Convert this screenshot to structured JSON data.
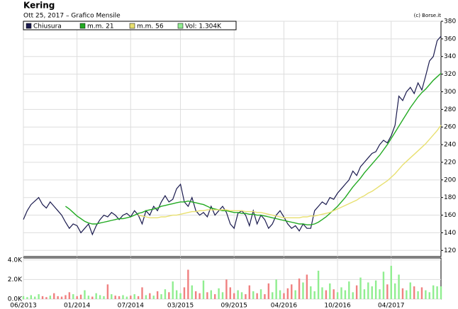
{
  "chart_data": {
    "type": "line",
    "title": "Kering",
    "subtitle": "Ott 25, 2017 – Grafico Mensile",
    "source": "(c) Borse.it",
    "xlim": [
      0,
      109
    ],
    "xticks": [
      {
        "value": 0,
        "label": "06/2013"
      },
      {
        "value": 14,
        "label": "01/2014"
      },
      {
        "value": 28,
        "label": "07/2014"
      },
      {
        "value": 41,
        "label": "03/2015"
      },
      {
        "value": 55,
        "label": "09/2015"
      },
      {
        "value": 68,
        "label": "04/2016"
      },
      {
        "value": 82,
        "label": "10/2016"
      },
      {
        "value": 96,
        "label": "04/2017"
      }
    ],
    "ylim": [
      113,
      380
    ],
    "yticks": [
      120,
      140,
      160,
      180,
      200,
      220,
      240,
      260,
      280,
      300,
      320,
      340,
      360,
      380
    ],
    "y2lim": [
      0,
      4200
    ],
    "y2ticks": [
      {
        "value": 0,
        "label": "0.0K"
      },
      {
        "value": 2000,
        "label": "2.0K"
      },
      {
        "value": 4000,
        "label": "4.0K"
      }
    ],
    "grid": true,
    "series": [
      {
        "name": "Chiusura",
        "color": "#1a1a4e",
        "values": [
          155,
          165,
          172,
          176,
          180,
          172,
          168,
          175,
          170,
          165,
          160,
          152,
          145,
          150,
          148,
          140,
          145,
          150,
          138,
          148,
          155,
          160,
          158,
          163,
          160,
          155,
          160,
          162,
          158,
          165,
          160,
          150,
          165,
          160,
          170,
          165,
          175,
          182,
          175,
          178,
          190,
          195,
          175,
          170,
          180,
          165,
          160,
          163,
          158,
          170,
          160,
          165,
          170,
          163,
          150,
          145,
          162,
          165,
          160,
          148,
          165,
          150,
          160,
          155,
          145,
          150,
          160,
          165,
          158,
          150,
          145,
          148,
          142,
          150,
          145,
          145,
          165,
          170,
          175,
          172,
          180,
          178,
          185,
          190,
          195,
          200,
          210,
          205,
          215,
          220,
          225,
          230,
          232,
          240,
          245,
          242,
          250,
          262,
          295,
          290,
          300,
          305,
          298,
          310,
          302,
          318,
          335,
          340,
          358,
          363
        ]
      },
      {
        "name": "m.m. 21",
        "color": "#22aa22",
        "values": [
          null,
          null,
          null,
          null,
          null,
          null,
          null,
          null,
          null,
          null,
          null,
          170,
          167,
          163,
          159,
          156,
          153,
          151,
          150,
          150,
          151,
          152,
          153,
          154,
          155,
          156,
          156,
          157,
          158,
          160,
          162,
          163,
          165,
          166,
          167,
          168,
          170,
          171,
          172,
          173,
          174,
          175,
          175,
          176,
          175,
          174,
          173,
          172,
          170,
          168,
          167,
          166,
          165,
          165,
          164,
          163,
          163,
          162,
          162,
          161,
          161,
          160,
          160,
          159,
          158,
          157,
          156,
          155,
          154,
          153,
          152,
          151,
          150,
          150,
          149,
          149,
          150,
          152,
          155,
          158,
          162,
          166,
          170,
          175,
          180,
          186,
          192,
          197,
          202,
          208,
          213,
          218,
          223,
          228,
          234,
          240,
          247,
          254,
          261,
          268,
          275,
          282,
          288,
          294,
          299,
          303,
          308,
          313,
          317,
          321
        ]
      },
      {
        "name": "m.m. 56",
        "color": "#e8e070",
        "values": [
          null,
          null,
          null,
          null,
          null,
          null,
          null,
          null,
          null,
          null,
          null,
          null,
          null,
          null,
          null,
          null,
          null,
          null,
          null,
          null,
          null,
          null,
          null,
          null,
          null,
          null,
          null,
          null,
          null,
          null,
          160,
          159,
          158,
          157,
          157,
          157,
          158,
          158,
          159,
          160,
          160,
          161,
          162,
          163,
          164,
          164,
          165,
          165,
          166,
          166,
          166,
          166,
          166,
          166,
          165,
          165,
          165,
          165,
          164,
          164,
          164,
          163,
          163,
          162,
          161,
          160,
          159,
          158,
          157,
          157,
          157,
          157,
          157,
          158,
          158,
          159,
          159,
          160,
          161,
          162,
          163,
          165,
          167,
          169,
          171,
          173,
          175,
          177,
          180,
          182,
          185,
          187,
          190,
          193,
          196,
          199,
          203,
          207,
          212,
          217,
          221,
          225,
          229,
          233,
          237,
          241,
          246,
          251,
          256,
          262
        ]
      },
      {
        "name": "Vol: 1.304K",
        "type": "bar",
        "axis": "y2",
        "color": "#90ee90",
        "down_color": "#f08080",
        "values": [
          300,
          200,
          400,
          250,
          500,
          300,
          200,
          350,
          600,
          300,
          250,
          400,
          700,
          500,
          300,
          450,
          900,
          350,
          250,
          600,
          400,
          300,
          1500,
          500,
          350,
          300,
          400,
          250,
          350,
          500,
          300,
          1200,
          400,
          600,
          350,
          800,
          500,
          1000,
          700,
          1800,
          900,
          600,
          1200,
          3000,
          1400,
          800,
          600,
          1900,
          700,
          900,
          500,
          1100,
          700,
          2000,
          1200,
          600,
          900,
          700,
          500,
          1400,
          800,
          600,
          1000,
          500,
          1600,
          700,
          2000,
          900,
          600,
          1100,
          1500,
          900,
          2100,
          1700,
          2500,
          1300,
          800,
          2900,
          1200,
          900,
          1600,
          1000,
          700,
          1200,
          900,
          1800,
          700,
          1400,
          2200,
          1000,
          1700,
          1300,
          1900,
          1000,
          2800,
          1500,
          3400,
          1600,
          2500,
          1100,
          900,
          1700,
          1300,
          800,
          1200,
          900,
          700,
          1400,
          1300,
          1300
        ]
      }
    ]
  }
}
